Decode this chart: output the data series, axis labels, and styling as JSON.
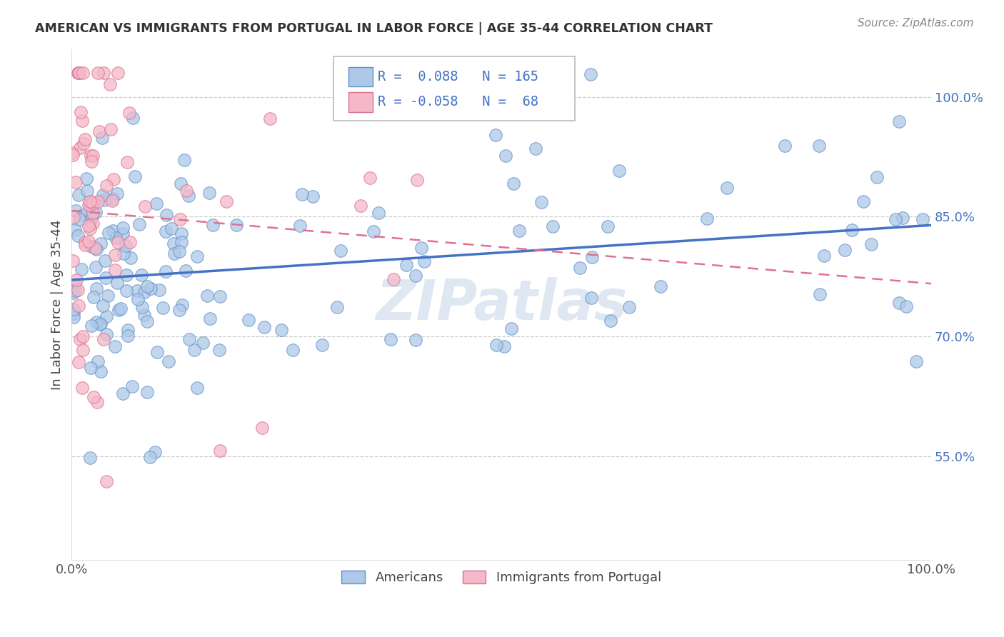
{
  "title": "AMERICAN VS IMMIGRANTS FROM PORTUGAL IN LABOR FORCE | AGE 35-44 CORRELATION CHART",
  "source": "Source: ZipAtlas.com",
  "ylabel": "In Labor Force | Age 35-44",
  "xlim": [
    0.0,
    1.0
  ],
  "ylim": [
    0.42,
    1.06
  ],
  "yticks": [
    0.55,
    0.7,
    0.85,
    1.0
  ],
  "ytick_labels": [
    "55.0%",
    "70.0%",
    "85.0%",
    "100.0%"
  ],
  "xtick_labels": [
    "0.0%",
    "100.0%"
  ],
  "blue_R": 0.088,
  "blue_N": 165,
  "pink_R": -0.058,
  "pink_N": 68,
  "blue_color": "#adc8e8",
  "pink_color": "#f5b8c8",
  "blue_edge_color": "#6090c8",
  "pink_edge_color": "#d87090",
  "blue_line_color": "#4472c4",
  "pink_line_color": "#e07090",
  "watermark": "ZIPatlas",
  "legend_label_blue": "Americans",
  "legend_label_pink": "Immigrants from Portugal"
}
